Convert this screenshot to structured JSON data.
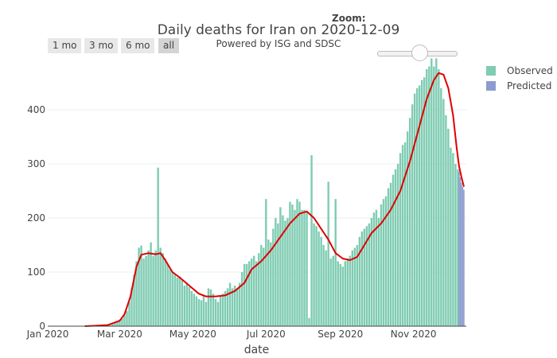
{
  "header": {
    "title": "Daily deaths for Iran on 2020-12-09",
    "subtitle": "Powered by ISG and SDSC",
    "zoom_label": "Zoom:"
  },
  "range_buttons": [
    {
      "label": "1 mo"
    },
    {
      "label": "3 mo"
    },
    {
      "label": "6 mo"
    },
    {
      "label": "all",
      "active": true
    }
  ],
  "legend": {
    "observed": {
      "label": "Observed",
      "color": "#7fccb2"
    },
    "predicted": {
      "label": "Predicted",
      "color": "#8c9ccf"
    }
  },
  "colors": {
    "fit_line": "#dd0000",
    "grid": "#eeeeee"
  },
  "chart_data": {
    "type": "bar",
    "title": "Daily deaths for Iran on 2020-12-09",
    "subtitle": "Powered by ISG and SDSC",
    "xlabel": "date",
    "ylabel": "",
    "x_range": [
      "2020-01-01",
      "2020-12-15"
    ],
    "ylim": [
      0,
      500
    ],
    "y_ticks": [
      0,
      100,
      200,
      300,
      400
    ],
    "x_ticks": [
      {
        "date": "2020-01-01",
        "label": "Jan 2020"
      },
      {
        "date": "2020-03-01",
        "label": "Mar 2020"
      },
      {
        "date": "2020-05-01",
        "label": "May 2020"
      },
      {
        "date": "2020-07-01",
        "label": "Jul 2020"
      },
      {
        "date": "2020-09-01",
        "label": "Sep 2020"
      },
      {
        "date": "2020-11-01",
        "label": "Nov 2020"
      }
    ],
    "grid": true,
    "legend_position": "top-right",
    "series": [
      {
        "name": "Observed",
        "type": "bar",
        "points": [
          [
            "2020-02-20",
            1
          ],
          [
            "2020-02-22",
            2
          ],
          [
            "2020-02-24",
            4
          ],
          [
            "2020-02-26",
            6
          ],
          [
            "2020-02-28",
            9
          ],
          [
            "2020-03-01",
            12
          ],
          [
            "2020-03-03",
            14
          ],
          [
            "2020-03-05",
            20
          ],
          [
            "2020-03-07",
            28
          ],
          [
            "2020-03-09",
            45
          ],
          [
            "2020-03-11",
            70
          ],
          [
            "2020-03-13",
            95
          ],
          [
            "2020-03-15",
            120
          ],
          [
            "2020-03-17",
            145
          ],
          [
            "2020-03-19",
            149
          ],
          [
            "2020-03-21",
            125
          ],
          [
            "2020-03-23",
            130
          ],
          [
            "2020-03-25",
            140
          ],
          [
            "2020-03-27",
            155
          ],
          [
            "2020-03-29",
            130
          ],
          [
            "2020-03-31",
            140
          ],
          [
            "2020-04-02",
            293
          ],
          [
            "2020-04-04",
            145
          ],
          [
            "2020-04-06",
            135
          ],
          [
            "2020-04-08",
            125
          ],
          [
            "2020-04-10",
            115
          ],
          [
            "2020-04-12",
            105
          ],
          [
            "2020-04-14",
            100
          ],
          [
            "2020-04-16",
            95
          ],
          [
            "2020-04-18",
            90
          ],
          [
            "2020-04-20",
            92
          ],
          [
            "2020-04-22",
            85
          ],
          [
            "2020-04-24",
            75
          ],
          [
            "2020-04-26",
            80
          ],
          [
            "2020-04-28",
            72
          ],
          [
            "2020-04-30",
            65
          ],
          [
            "2020-05-02",
            60
          ],
          [
            "2020-05-04",
            55
          ],
          [
            "2020-05-06",
            50
          ],
          [
            "2020-05-08",
            48
          ],
          [
            "2020-05-10",
            55
          ],
          [
            "2020-05-12",
            45
          ],
          [
            "2020-05-14",
            70
          ],
          [
            "2020-05-16",
            68
          ],
          [
            "2020-05-18",
            60
          ],
          [
            "2020-05-20",
            50
          ],
          [
            "2020-05-22",
            45
          ],
          [
            "2020-05-24",
            55
          ],
          [
            "2020-05-26",
            60
          ],
          [
            "2020-05-28",
            65
          ],
          [
            "2020-05-30",
            70
          ],
          [
            "2020-06-01",
            80
          ],
          [
            "2020-06-03",
            70
          ],
          [
            "2020-06-05",
            75
          ],
          [
            "2020-06-07",
            70
          ],
          [
            "2020-06-09",
            80
          ],
          [
            "2020-06-11",
            100
          ],
          [
            "2020-06-13",
            115
          ],
          [
            "2020-06-15",
            115
          ],
          [
            "2020-06-17",
            120
          ],
          [
            "2020-06-19",
            125
          ],
          [
            "2020-06-21",
            130
          ],
          [
            "2020-06-23",
            120
          ],
          [
            "2020-06-25",
            135
          ],
          [
            "2020-06-27",
            150
          ],
          [
            "2020-06-29",
            145
          ],
          [
            "2020-07-01",
            235
          ],
          [
            "2020-07-03",
            160
          ],
          [
            "2020-07-05",
            155
          ],
          [
            "2020-07-07",
            180
          ],
          [
            "2020-07-09",
            200
          ],
          [
            "2020-07-11",
            190
          ],
          [
            "2020-07-13",
            220
          ],
          [
            "2020-07-15",
            205
          ],
          [
            "2020-07-17",
            195
          ],
          [
            "2020-07-19",
            200
          ],
          [
            "2020-07-21",
            230
          ],
          [
            "2020-07-23",
            225
          ],
          [
            "2020-07-25",
            215
          ],
          [
            "2020-07-27",
            235
          ],
          [
            "2020-07-29",
            230
          ],
          [
            "2020-07-31",
            215
          ],
          [
            "2020-08-02",
            215
          ],
          [
            "2020-08-04",
            210
          ],
          [
            "2020-08-06",
            15
          ],
          [
            "2020-08-08",
            316
          ],
          [
            "2020-08-10",
            190
          ],
          [
            "2020-08-12",
            185
          ],
          [
            "2020-08-14",
            175
          ],
          [
            "2020-08-16",
            165
          ],
          [
            "2020-08-18",
            150
          ],
          [
            "2020-08-20",
            140
          ],
          [
            "2020-08-22",
            267
          ],
          [
            "2020-08-24",
            125
          ],
          [
            "2020-08-26",
            130
          ],
          [
            "2020-08-28",
            235
          ],
          [
            "2020-08-30",
            120
          ],
          [
            "2020-09-01",
            115
          ],
          [
            "2020-09-03",
            110
          ],
          [
            "2020-09-05",
            120
          ],
          [
            "2020-09-07",
            125
          ],
          [
            "2020-09-09",
            130
          ],
          [
            "2020-09-11",
            140
          ],
          [
            "2020-09-13",
            145
          ],
          [
            "2020-09-15",
            150
          ],
          [
            "2020-09-17",
            165
          ],
          [
            "2020-09-19",
            175
          ],
          [
            "2020-09-21",
            180
          ],
          [
            "2020-09-23",
            185
          ],
          [
            "2020-09-25",
            190
          ],
          [
            "2020-09-27",
            200
          ],
          [
            "2020-09-29",
            210
          ],
          [
            "2020-10-01",
            215
          ],
          [
            "2020-10-03",
            200
          ],
          [
            "2020-10-05",
            225
          ],
          [
            "2020-10-07",
            235
          ],
          [
            "2020-10-09",
            240
          ],
          [
            "2020-10-11",
            255
          ],
          [
            "2020-10-13",
            265
          ],
          [
            "2020-10-15",
            280
          ],
          [
            "2020-10-17",
            290
          ],
          [
            "2020-10-19",
            300
          ],
          [
            "2020-10-21",
            320
          ],
          [
            "2020-10-23",
            335
          ],
          [
            "2020-10-25",
            340
          ],
          [
            "2020-10-27",
            360
          ],
          [
            "2020-10-29",
            385
          ],
          [
            "2020-10-31",
            410
          ],
          [
            "2020-11-02",
            430
          ],
          [
            "2020-11-04",
            440
          ],
          [
            "2020-11-06",
            445
          ],
          [
            "2020-11-08",
            455
          ],
          [
            "2020-11-10",
            460
          ],
          [
            "2020-11-12",
            475
          ],
          [
            "2020-11-14",
            480
          ],
          [
            "2020-11-16",
            495
          ],
          [
            "2020-11-18",
            480
          ],
          [
            "2020-11-20",
            495
          ],
          [
            "2020-11-22",
            475
          ],
          [
            "2020-11-24",
            440
          ],
          [
            "2020-11-26",
            420
          ],
          [
            "2020-11-28",
            390
          ],
          [
            "2020-11-30",
            365
          ],
          [
            "2020-12-02",
            330
          ],
          [
            "2020-12-04",
            320
          ],
          [
            "2020-12-06",
            300
          ],
          [
            "2020-12-08",
            290
          ]
        ]
      },
      {
        "name": "Predicted",
        "type": "bar",
        "points": [
          [
            "2020-12-09",
            285
          ],
          [
            "2020-12-10",
            275
          ],
          [
            "2020-12-11",
            265
          ],
          [
            "2020-12-12",
            258
          ],
          [
            "2020-12-13",
            252
          ]
        ]
      },
      {
        "name": "",
        "type": "line",
        "points": [
          [
            "2020-02-01",
            0
          ],
          [
            "2020-02-20",
            2
          ],
          [
            "2020-03-01",
            10
          ],
          [
            "2020-03-05",
            22
          ],
          [
            "2020-03-10",
            55
          ],
          [
            "2020-03-15",
            110
          ],
          [
            "2020-03-19",
            132
          ],
          [
            "2020-03-25",
            135
          ],
          [
            "2020-03-31",
            133
          ],
          [
            "2020-04-04",
            135
          ],
          [
            "2020-04-08",
            122
          ],
          [
            "2020-04-14",
            100
          ],
          [
            "2020-04-20",
            90
          ],
          [
            "2020-04-28",
            75
          ],
          [
            "2020-05-06",
            60
          ],
          [
            "2020-05-12",
            55
          ],
          [
            "2020-05-20",
            55
          ],
          [
            "2020-05-28",
            57
          ],
          [
            "2020-06-05",
            65
          ],
          [
            "2020-06-13",
            80
          ],
          [
            "2020-06-19",
            105
          ],
          [
            "2020-06-27",
            120
          ],
          [
            "2020-07-05",
            140
          ],
          [
            "2020-07-13",
            165
          ],
          [
            "2020-07-21",
            190
          ],
          [
            "2020-07-29",
            208
          ],
          [
            "2020-08-04",
            212
          ],
          [
            "2020-08-10",
            200
          ],
          [
            "2020-08-16",
            180
          ],
          [
            "2020-08-22",
            160
          ],
          [
            "2020-08-28",
            135
          ],
          [
            "2020-09-03",
            125
          ],
          [
            "2020-09-09",
            122
          ],
          [
            "2020-09-15",
            128
          ],
          [
            "2020-09-21",
            150
          ],
          [
            "2020-09-27",
            172
          ],
          [
            "2020-10-05",
            190
          ],
          [
            "2020-10-13",
            215
          ],
          [
            "2020-10-21",
            250
          ],
          [
            "2020-10-29",
            305
          ],
          [
            "2020-11-06",
            370
          ],
          [
            "2020-11-12",
            420
          ],
          [
            "2020-11-18",
            455
          ],
          [
            "2020-11-22",
            468
          ],
          [
            "2020-11-26",
            465
          ],
          [
            "2020-11-30",
            440
          ],
          [
            "2020-12-04",
            390
          ],
          [
            "2020-12-07",
            330
          ],
          [
            "2020-12-09",
            295
          ],
          [
            "2020-12-11",
            275
          ],
          [
            "2020-12-13",
            258
          ]
        ]
      }
    ]
  }
}
